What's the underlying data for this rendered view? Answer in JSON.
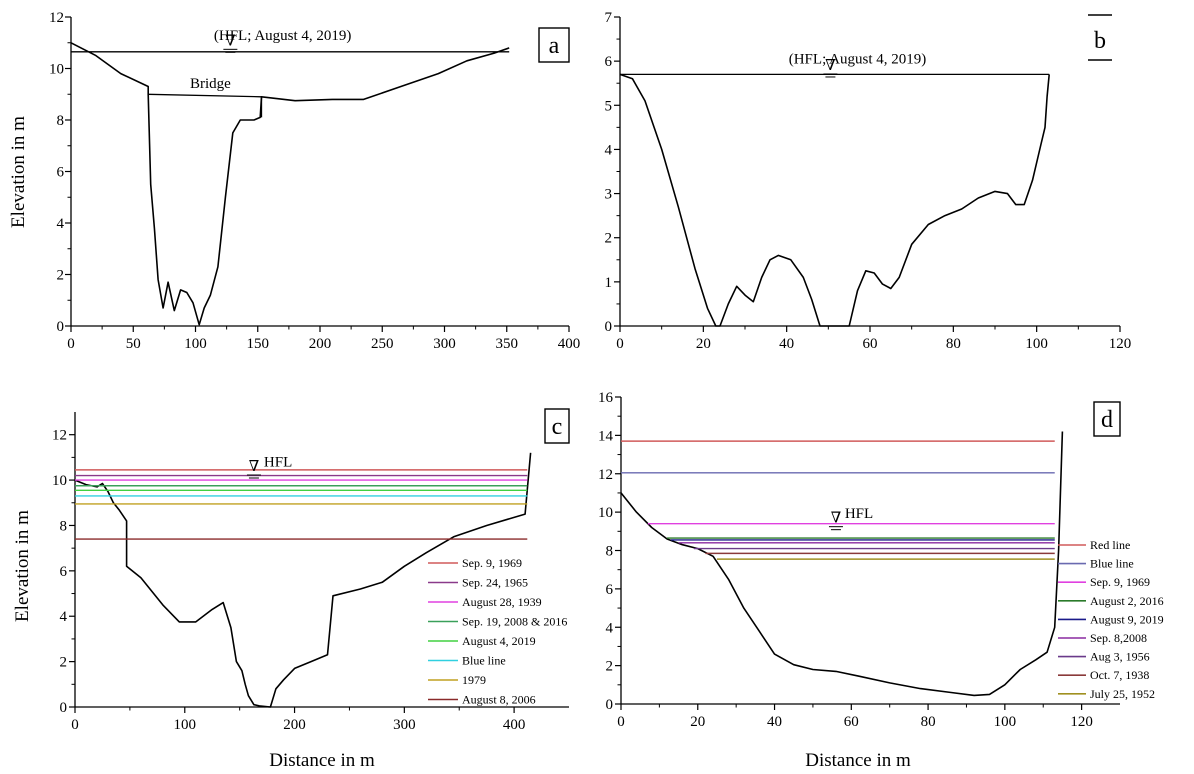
{
  "chart_data": [
    {
      "panel": "a",
      "type": "line",
      "panel_label": "a",
      "xlabel": "",
      "ylabel": "Elevation in m",
      "xlim": [
        0,
        400
      ],
      "ylim": [
        0,
        12
      ],
      "xticks": [
        0,
        50,
        100,
        150,
        200,
        250,
        300,
        350,
        400
      ],
      "yticks": [
        0,
        2,
        4,
        6,
        8,
        10,
        12
      ],
      "series": [
        {
          "kind": "profile",
          "color": "#000000",
          "x": [
            0,
            20,
            40,
            62,
            62,
            64,
            67,
            70,
            74,
            78,
            83,
            88,
            93,
            98,
            103,
            107,
            112,
            118,
            124,
            130,
            136,
            141,
            147,
            152,
            153,
            180,
            210,
            235,
            265,
            295,
            318,
            340,
            352
          ],
          "y": [
            11,
            10.5,
            9.8,
            9.3,
            9.0,
            5.5,
            3.8,
            1.8,
            0.7,
            1.7,
            0.6,
            1.4,
            1.3,
            0.9,
            0.05,
            0.7,
            1.2,
            2.3,
            5.0,
            7.5,
            8.0,
            8.0,
            8.0,
            8.1,
            8.9,
            8.75,
            8.8,
            8.8,
            9.3,
            9.8,
            10.3,
            10.6,
            10.8
          ]
        },
        {
          "kind": "bridge-deck",
          "color": "#000000",
          "x": [
            62,
            153,
            153
          ],
          "y": [
            9.0,
            8.9,
            8.1
          ]
        },
        {
          "kind": "hfl",
          "color": "#000000",
          "x": [
            0,
            352
          ],
          "y": [
            10.65,
            10.65
          ]
        }
      ],
      "annotations": [
        {
          "text": "Bridge",
          "x": 112,
          "y": 9.25
        },
        {
          "text": "(HFL; August 4, 2019)",
          "x": 170,
          "y": 11.1
        },
        {
          "symbol": "∇",
          "x": 128,
          "y": 10.9
        }
      ]
    },
    {
      "panel": "b",
      "type": "line",
      "panel_label": "b",
      "xlabel": "",
      "ylabel": "",
      "xlim": [
        0,
        120
      ],
      "ylim": [
        0,
        7
      ],
      "xticks": [
        0,
        20,
        40,
        60,
        80,
        100,
        120
      ],
      "yticks": [
        0,
        1,
        2,
        3,
        4,
        5,
        6,
        7
      ],
      "series": [
        {
          "kind": "profile",
          "color": "#000000",
          "x": [
            0,
            3,
            6,
            10,
            14,
            18,
            21,
            23,
            24,
            26,
            28,
            30,
            32,
            34,
            36,
            38,
            41,
            44,
            46,
            48,
            55,
            57,
            59,
            61,
            63,
            65,
            67,
            70,
            74,
            78,
            82,
            86,
            90,
            93,
            95,
            97,
            99,
            101,
            102,
            102.5,
            103
          ],
          "y": [
            5.7,
            5.6,
            5.1,
            4.0,
            2.7,
            1.3,
            0.4,
            0.0,
            0.0,
            0.5,
            0.9,
            0.7,
            0.55,
            1.1,
            1.5,
            1.6,
            1.5,
            1.1,
            0.6,
            0.0,
            0.0,
            0.8,
            1.25,
            1.2,
            0.95,
            0.85,
            1.1,
            1.85,
            2.3,
            2.5,
            2.65,
            2.9,
            3.05,
            3.0,
            2.75,
            2.75,
            3.3,
            4.1,
            4.5,
            5.2,
            5.7
          ]
        },
        {
          "kind": "hfl",
          "color": "#000000",
          "x": [
            0,
            103
          ],
          "y": [
            5.7,
            5.7
          ]
        }
      ],
      "annotations": [
        {
          "text": "(HFL; August 4, 2019)",
          "x": 57,
          "y": 5.95
        },
        {
          "symbol": "∇",
          "x": 50.5,
          "y": 5.8
        }
      ]
    },
    {
      "panel": "c",
      "type": "line",
      "panel_label": "c",
      "xlabel": "Distance in m",
      "ylabel": "Elevation in m",
      "xlim": [
        0,
        450
      ],
      "ylim": [
        0,
        13
      ],
      "xticks": [
        0,
        100,
        200,
        300,
        400
      ],
      "yticks": [
        0,
        2,
        4,
        6,
        8,
        10,
        12
      ],
      "series": [
        {
          "kind": "profile",
          "color": "#000000",
          "x": [
            0,
            10,
            20,
            25,
            30,
            35,
            40,
            47,
            47,
            60,
            80,
            95,
            110,
            125,
            135,
            142,
            147,
            152,
            155,
            158,
            163,
            168,
            178,
            183,
            190,
            200,
            215,
            230,
            235,
            260,
            280,
            300,
            320,
            345,
            375,
            410,
            415
          ],
          "y": [
            10.0,
            9.8,
            9.7,
            9.85,
            9.5,
            9.0,
            8.7,
            8.2,
            6.2,
            5.7,
            4.5,
            3.75,
            3.75,
            4.3,
            4.6,
            3.5,
            2.0,
            1.6,
            1.0,
            0.5,
            0.1,
            0.05,
            0.0,
            0.8,
            1.2,
            1.7,
            2.0,
            2.3,
            4.9,
            5.2,
            5.5,
            6.2,
            6.8,
            7.5,
            8.0,
            8.5,
            11.2
          ]
        },
        {
          "kind": "level-lines",
          "x_range": [
            0,
            412
          ],
          "lines": [
            {
              "name": "Sep. 9, 1969",
              "y": 10.45,
              "color": "#d05a5a"
            },
            {
              "name": "Sep. 24, 1965",
              "y": 10.2,
              "color": "#8a3a8a"
            },
            {
              "name": "August 28, 1939",
              "y": 10.0,
              "color": "#e040e0"
            },
            {
              "name": "Sep. 19, 2008 & 2016",
              "y": 9.75,
              "color": "#3aa05a"
            },
            {
              "name": "August 4, 2019",
              "y": 9.55,
              "color": "#40d040"
            },
            {
              "name": "Blue line",
              "y": 9.3,
              "color": "#30d0e0"
            },
            {
              "name": "1979",
              "y": 8.95,
              "color": "#c0a020"
            },
            {
              "name": "August 8,  2006",
              "y": 7.4,
              "color": "#8a2a2a"
            }
          ]
        }
      ],
      "legend": {
        "placement": "bottom-right"
      },
      "annotations": [
        {
          "text": "HFL",
          "x": 185,
          "y": 10.6
        },
        {
          "symbol": "∇",
          "x": 163,
          "y": 10.4
        }
      ]
    },
    {
      "panel": "d",
      "type": "line",
      "panel_label": "d",
      "xlabel": "Distance in m",
      "ylabel": "",
      "xlim": [
        0,
        130
      ],
      "ylim": [
        0,
        16
      ],
      "xticks": [
        0,
        20,
        40,
        60,
        80,
        100,
        120
      ],
      "yticks": [
        0,
        2,
        4,
        6,
        8,
        10,
        12,
        14,
        16
      ],
      "series": [
        {
          "kind": "profile",
          "color": "#000000",
          "x": [
            0,
            4,
            8,
            12,
            16,
            20,
            24,
            28,
            32,
            36,
            40,
            45,
            50,
            56,
            62,
            70,
            78,
            86,
            92,
            96,
            100,
            104,
            108,
            111,
            113,
            114,
            115
          ],
          "y": [
            11.0,
            10.0,
            9.2,
            8.6,
            8.3,
            8.1,
            7.7,
            6.5,
            5.0,
            3.8,
            2.6,
            2.05,
            1.8,
            1.7,
            1.45,
            1.1,
            0.8,
            0.6,
            0.45,
            0.5,
            1.0,
            1.8,
            2.3,
            2.7,
            4.0,
            8.0,
            14.2
          ]
        },
        {
          "kind": "level-lines",
          "x_range": [
            0,
            113
          ],
          "lines": [
            {
              "name": "Red line",
              "y": 13.7,
              "color": "#d05a5a",
              "x_start": 0
            },
            {
              "name": "Blue line",
              "y": 12.05,
              "color": "#6a6ab0",
              "x_start": 0
            },
            {
              "name": "Sep. 9, 1969",
              "y": 9.4,
              "color": "#e040e0",
              "x_start": 7
            },
            {
              "name": "August 2, 2016",
              "y": 8.65,
              "color": "#2a7a2a",
              "x_start": 12
            },
            {
              "name": "August 9, 2019",
              "y": 8.55,
              "color": "#1a1a8a",
              "x_start": 13
            },
            {
              "name": "Sep. 8,2008",
              "y": 8.4,
              "color": "#8a2aa0",
              "x_start": 15
            },
            {
              "name": "Aug 3, 1956",
              "y": 8.1,
              "color": "#6a3a8a",
              "x_start": 19
            },
            {
              "name": "Oct. 7, 1938",
              "y": 7.85,
              "color": "#8a3a3a",
              "x_start": 22
            },
            {
              "name": "July 25, 1952",
              "y": 7.55,
              "color": "#a09020",
              "x_start": 25
            }
          ]
        }
      ],
      "legend": {
        "placement": "right"
      },
      "annotations": [
        {
          "text": "HFL",
          "x": 62,
          "y": 9.7
        },
        {
          "symbol": "∇",
          "x": 56,
          "y": 9.45
        }
      ]
    }
  ]
}
